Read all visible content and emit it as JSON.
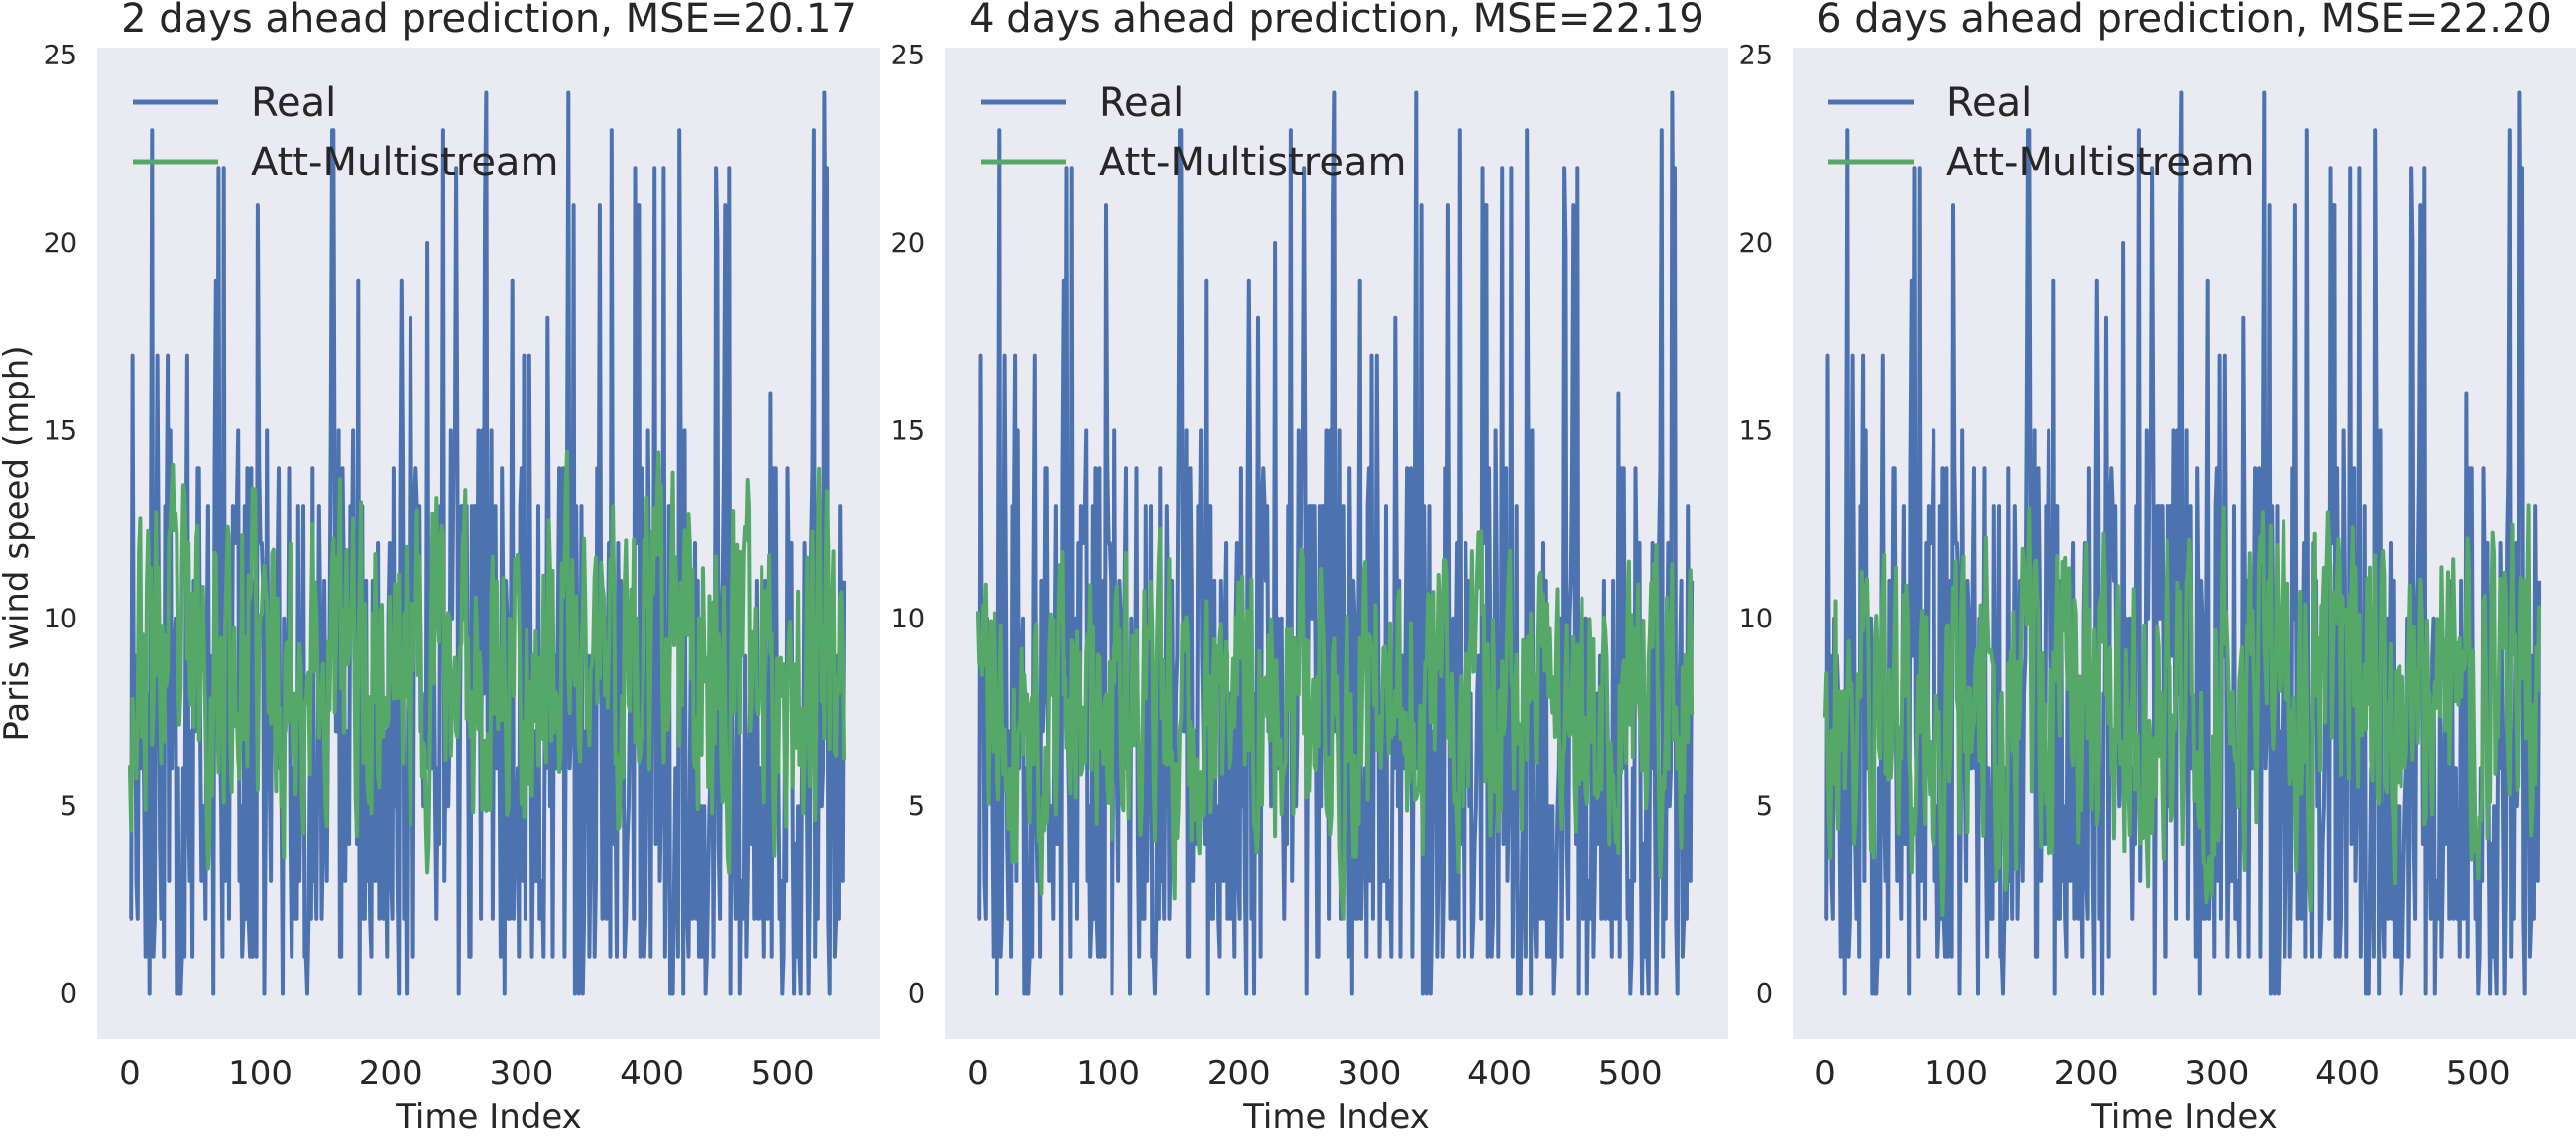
{
  "chart_data": [
    {
      "type": "line",
      "title": "2 days ahead prediction, MSE=20.17",
      "xlabel": "Time Index",
      "ylabel": "Paris wind speed (mph)",
      "xlim": [
        -25,
        575
      ],
      "ylim": [
        -1.2,
        25.2
      ],
      "xticks": [
        0,
        100,
        200,
        300,
        400,
        500
      ],
      "yticks": [
        0,
        5,
        10,
        15,
        20,
        25
      ],
      "grid": false,
      "legend": "top-left",
      "series": [
        {
          "name": "Real",
          "color": "#4c72b0",
          "x_range": [
            0,
            547
          ],
          "y_min": 0,
          "y_max": 24,
          "seed": 17
        },
        {
          "name": "Att-Multistream",
          "color": "#55a868",
          "x_range": [
            0,
            547
          ],
          "y_min": 2.6,
          "y_max": 16.4,
          "seed": 23
        }
      ]
    },
    {
      "type": "line",
      "title": "4 days ahead prediction, MSE=22.19",
      "xlabel": "Time Index",
      "ylabel": "",
      "xlim": [
        -25,
        575
      ],
      "ylim": [
        -1.2,
        25.2
      ],
      "xticks": [
        0,
        100,
        200,
        300,
        400,
        500
      ],
      "yticks": [
        0,
        5,
        10,
        15,
        20,
        25
      ],
      "grid": false,
      "legend": "top-left",
      "series": [
        {
          "name": "Real",
          "color": "#4c72b0",
          "x_range": [
            0,
            547
          ],
          "y_min": 0,
          "y_max": 24,
          "seed": 17
        },
        {
          "name": "Att-Multistream",
          "color": "#55a868",
          "x_range": [
            0,
            547
          ],
          "y_min": 2.0,
          "y_max": 14.3,
          "seed": 41
        }
      ]
    },
    {
      "type": "line",
      "title": "6 days ahead prediction, MSE=22.20",
      "xlabel": "Time Index",
      "ylabel": "",
      "xlim": [
        -25,
        575
      ],
      "ylim": [
        -1.2,
        25.2
      ],
      "xticks": [
        0,
        100,
        200,
        300,
        400,
        500
      ],
      "yticks": [
        0,
        5,
        10,
        15,
        20,
        25
      ],
      "grid": false,
      "legend": "top-left",
      "series": [
        {
          "name": "Real",
          "color": "#4c72b0",
          "x_range": [
            0,
            547
          ],
          "y_min": 0,
          "y_max": 24,
          "seed": 17
        },
        {
          "name": "Att-Multistream",
          "color": "#55a868",
          "x_range": [
            0,
            547
          ],
          "y_min": 1.5,
          "y_max": 15.5,
          "seed": 59
        }
      ]
    }
  ]
}
